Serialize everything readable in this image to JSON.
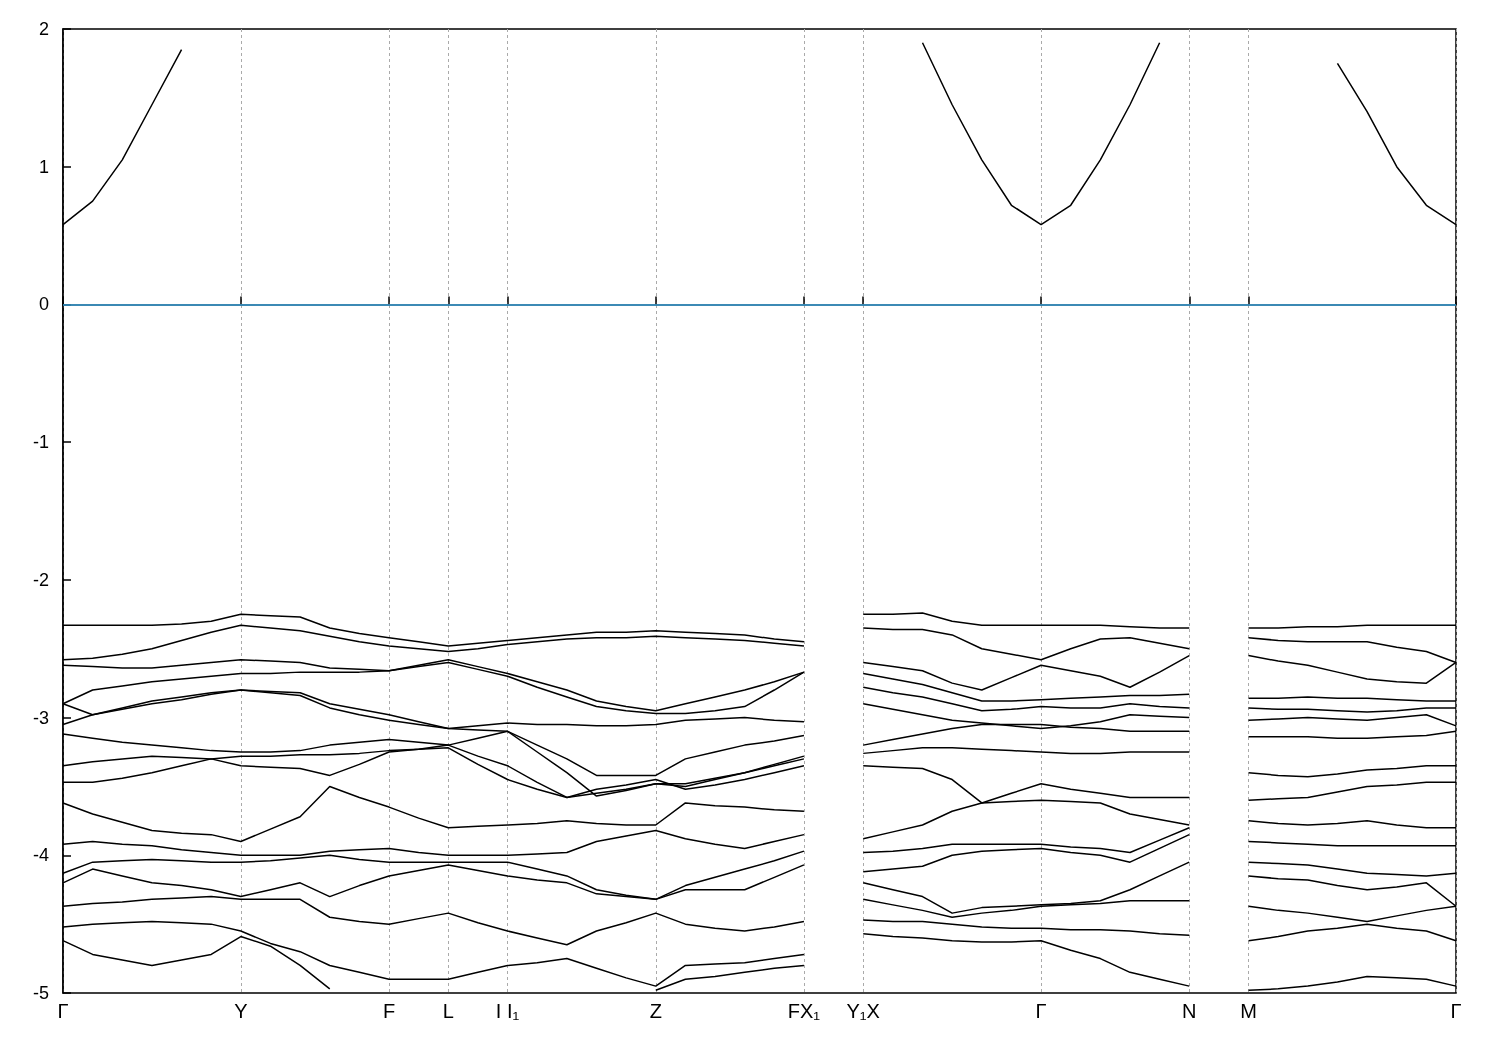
{
  "chart_data": {
    "type": "line",
    "ylim": [
      -5,
      2
    ],
    "yticks": [
      -5,
      -4,
      -3,
      -2,
      -1,
      0,
      1,
      2
    ],
    "categories": [
      "Γ",
      null,
      null,
      null,
      null,
      null,
      "Y",
      null,
      null,
      null,
      null,
      "F",
      null,
      "L",
      null,
      "I I₁",
      null,
      null,
      null,
      null,
      "Z",
      null,
      null,
      null,
      null,
      "FX₁",
      null,
      "Y₁X",
      null,
      null,
      null,
      null,
      null,
      "Γ",
      null,
      null,
      null,
      null,
      "N",
      null,
      "M",
      null,
      null,
      null,
      null,
      null,
      null,
      "Γ"
    ],
    "grid": "x",
    "marker": "none",
    "line_style": "solid",
    "ref_lines": [
      {
        "axis": "y",
        "value": 0,
        "color": "#3ba3dc"
      }
    ],
    "series": [
      {
        "color": "#000000",
        "values": [
          0.58,
          0.75,
          1.05,
          1.45,
          1.85,
          null,
          null,
          null,
          null,
          null,
          null,
          null,
          null,
          null,
          null,
          null,
          null,
          null,
          null,
          null,
          null,
          null,
          null,
          null,
          null,
          null,
          null,
          null,
          null,
          1.9,
          1.45,
          1.05,
          0.72,
          0.58,
          0.72,
          1.05,
          1.45,
          1.9,
          null,
          null,
          null,
          null,
          null,
          1.75,
          1.4,
          1.0,
          0.72,
          0.58
        ]
      },
      {
        "color": "#000000",
        "values": [
          -2.33,
          -2.33,
          -2.33,
          -2.33,
          -2.32,
          -2.3,
          -2.25,
          -2.26,
          -2.27,
          -2.35,
          -2.39,
          -2.42,
          -2.45,
          -2.48,
          -2.46,
          -2.44,
          -2.42,
          -2.4,
          -2.38,
          -2.38,
          -2.37,
          -2.38,
          -2.39,
          -2.4,
          -2.43,
          -2.45,
          null,
          -2.25,
          -2.25,
          -2.24,
          -2.3,
          -2.33,
          -2.33,
          -2.33,
          -2.33,
          -2.33,
          -2.34,
          -2.35,
          -2.35,
          null,
          -2.35,
          -2.35,
          -2.34,
          -2.34,
          -2.33,
          -2.33,
          -2.33,
          -2.33
        ]
      },
      {
        "color": "#000000",
        "values": [
          -2.58,
          -2.57,
          -2.54,
          -2.5,
          -2.44,
          -2.38,
          -2.33,
          -2.35,
          -2.37,
          -2.41,
          -2.45,
          -2.48,
          -2.5,
          -2.52,
          -2.5,
          -2.47,
          -2.45,
          -2.43,
          -2.42,
          -2.42,
          -2.41,
          -2.42,
          -2.43,
          -2.44,
          -2.46,
          -2.48,
          null,
          -2.35,
          -2.36,
          -2.36,
          -2.4,
          -2.5,
          -2.54,
          -2.58,
          -2.5,
          -2.43,
          -2.42,
          -2.46,
          -2.5,
          null,
          -2.42,
          -2.44,
          -2.45,
          -2.45,
          -2.45,
          -2.49,
          -2.52,
          -2.6
        ]
      },
      {
        "color": "#000000",
        "values": [
          -2.62,
          -2.63,
          -2.64,
          -2.64,
          -2.62,
          -2.6,
          -2.58,
          -2.59,
          -2.6,
          -2.64,
          -2.65,
          -2.66,
          -2.62,
          -2.58,
          -2.63,
          -2.68,
          -2.74,
          -2.8,
          -2.88,
          -2.92,
          -2.95,
          -2.9,
          -2.85,
          -2.8,
          -2.74,
          -2.67,
          null,
          -2.6,
          -2.63,
          -2.66,
          -2.75,
          -2.8,
          -2.71,
          -2.62,
          -2.66,
          -2.7,
          -2.78,
          -2.67,
          -2.55,
          null,
          -2.55,
          -2.59,
          -2.62,
          -2.67,
          -2.72,
          -2.74,
          -2.75,
          -2.6
        ]
      },
      {
        "color": "#000000",
        "values": [
          -2.9,
          -2.8,
          -2.77,
          -2.74,
          -2.72,
          -2.7,
          -2.68,
          -2.68,
          -2.67,
          -2.67,
          -2.67,
          -2.66,
          -2.63,
          -2.6,
          -2.65,
          -2.7,
          -2.78,
          -2.85,
          -2.92,
          -2.95,
          -2.97,
          -2.97,
          -2.95,
          -2.92,
          -2.8,
          -2.67,
          null,
          -2.68,
          -2.72,
          -2.76,
          -2.82,
          -2.88,
          -2.88,
          -2.87,
          -2.86,
          -2.85,
          -2.84,
          -2.84,
          -2.83,
          null,
          -2.86,
          -2.86,
          -2.85,
          -2.86,
          -2.86,
          -2.87,
          -2.88,
          -2.88
        ]
      },
      {
        "color": "#000000",
        "values": [
          -2.9,
          -2.98,
          -2.94,
          -2.9,
          -2.87,
          -2.83,
          -2.8,
          -2.81,
          -2.82,
          -2.9,
          -2.94,
          -2.98,
          -3.03,
          -3.08,
          -3.06,
          -3.04,
          -3.05,
          -3.05,
          -3.06,
          -3.06,
          -3.05,
          -3.02,
          -3.01,
          -3.0,
          -3.02,
          -3.03,
          null,
          -2.78,
          -2.82,
          -2.85,
          -2.9,
          -2.95,
          -2.94,
          -2.92,
          -2.93,
          -2.93,
          -2.9,
          -2.92,
          -2.93,
          null,
          -2.93,
          -2.94,
          -2.94,
          -2.95,
          -2.96,
          -2.95,
          -2.93,
          -2.93
        ]
      },
      {
        "color": "#000000",
        "values": [
          -3.05,
          -2.98,
          -2.93,
          -2.88,
          -2.85,
          -2.82,
          -2.8,
          -2.82,
          -2.84,
          -2.93,
          -2.98,
          -3.02,
          -3.05,
          -3.08,
          -3.09,
          -3.1,
          -3.2,
          -3.3,
          -3.42,
          -3.42,
          -3.42,
          -3.3,
          -3.25,
          -3.2,
          -3.17,
          -3.13,
          null,
          -2.9,
          -2.94,
          -2.98,
          -3.02,
          -3.04,
          -3.06,
          -3.08,
          -3.06,
          -3.03,
          -2.98,
          -2.99,
          -3.0,
          null,
          -3.02,
          -3.01,
          -3.0,
          -3.01,
          -3.02,
          -3.0,
          -2.98,
          -3.06
        ]
      },
      {
        "color": "#000000",
        "values": [
          -3.12,
          -3.15,
          -3.18,
          -3.2,
          -3.22,
          -3.24,
          -3.25,
          -3.25,
          -3.24,
          -3.2,
          -3.18,
          -3.16,
          -3.18,
          -3.2,
          -3.15,
          -3.1,
          -3.25,
          -3.4,
          -3.57,
          -3.53,
          -3.48,
          -3.5,
          -3.45,
          -3.4,
          -3.34,
          -3.28,
          null,
          -3.2,
          -3.16,
          -3.12,
          -3.08,
          -3.05,
          -3.05,
          -3.05,
          -3.07,
          -3.08,
          -3.1,
          -3.1,
          -3.1,
          null,
          -3.14,
          -3.14,
          -3.14,
          -3.15,
          -3.15,
          -3.14,
          -3.13,
          -3.1
        ]
      },
      {
        "color": "#000000",
        "values": [
          -3.35,
          -3.32,
          -3.3,
          -3.28,
          -3.29,
          -3.3,
          -3.35,
          -3.36,
          -3.37,
          -3.42,
          -3.34,
          -3.25,
          -3.23,
          -3.2,
          -3.28,
          -3.35,
          -3.47,
          -3.58,
          -3.52,
          -3.49,
          -3.45,
          -3.52,
          -3.49,
          -3.45,
          -3.4,
          -3.35,
          null,
          -3.26,
          -3.24,
          -3.22,
          -3.22,
          -3.23,
          -3.24,
          -3.25,
          -3.26,
          -3.26,
          -3.25,
          -3.25,
          -3.25,
          null,
          -3.4,
          -3.42,
          -3.43,
          -3.41,
          -3.38,
          -3.37,
          -3.35,
          -3.35
        ]
      },
      {
        "color": "#000000",
        "values": [
          -3.47,
          -3.47,
          -3.44,
          -3.4,
          -3.35,
          -3.3,
          -3.28,
          -3.28,
          -3.27,
          -3.27,
          -3.26,
          -3.24,
          -3.23,
          -3.22,
          -3.34,
          -3.45,
          -3.52,
          -3.58,
          -3.55,
          -3.52,
          -3.48,
          -3.48,
          -3.44,
          -3.4,
          -3.35,
          -3.3,
          null,
          -3.35,
          -3.36,
          -3.37,
          -3.45,
          -3.62,
          -3.55,
          -3.48,
          -3.52,
          -3.55,
          -3.58,
          -3.58,
          -3.58,
          null,
          -3.6,
          -3.59,
          -3.58,
          -3.54,
          -3.5,
          -3.49,
          -3.47,
          -3.47
        ]
      },
      {
        "color": "#000000",
        "values": [
          -3.62,
          -3.7,
          -3.76,
          -3.82,
          -3.84,
          -3.85,
          -3.9,
          -3.81,
          -3.72,
          -3.5,
          -3.58,
          -3.65,
          -3.73,
          -3.8,
          -3.79,
          -3.78,
          -3.77,
          -3.75,
          -3.77,
          -3.78,
          -3.78,
          -3.62,
          -3.64,
          -3.65,
          -3.67,
          -3.68,
          null,
          -3.88,
          -3.83,
          -3.78,
          -3.68,
          -3.62,
          -3.61,
          -3.6,
          -3.61,
          -3.62,
          -3.7,
          -3.74,
          -3.78,
          null,
          -3.75,
          -3.77,
          -3.78,
          -3.77,
          -3.75,
          -3.78,
          -3.8,
          -3.8
        ]
      },
      {
        "color": "#000000",
        "values": [
          -3.92,
          -3.9,
          -3.92,
          -3.93,
          -3.96,
          -3.98,
          -4.0,
          -4.0,
          -4.0,
          -3.97,
          -3.96,
          -3.95,
          -3.98,
          -4.0,
          -4.0,
          -4.0,
          -3.99,
          -3.98,
          -3.9,
          -3.86,
          -3.82,
          -3.88,
          -3.92,
          -3.95,
          -3.9,
          -3.85,
          null,
          -3.98,
          -3.97,
          -3.95,
          -3.92,
          -3.92,
          -3.92,
          -3.92,
          -3.94,
          -3.95,
          -3.98,
          -3.89,
          -3.8,
          null,
          -3.9,
          -3.91,
          -3.92,
          -3.93,
          -3.93,
          -3.93,
          -3.93,
          -3.93
        ]
      },
      {
        "color": "#000000",
        "values": [
          -4.13,
          -4.05,
          -4.04,
          -4.03,
          -4.04,
          -4.05,
          -4.05,
          -4.04,
          -4.02,
          -4.0,
          -4.03,
          -4.05,
          -4.05,
          -4.05,
          -4.05,
          -4.05,
          -4.1,
          -4.15,
          -4.25,
          -4.29,
          -4.32,
          -4.22,
          -4.16,
          -4.1,
          -4.04,
          -3.97,
          null,
          -4.12,
          -4.1,
          -4.08,
          -4.0,
          -3.97,
          -3.96,
          -3.95,
          -3.98,
          -4.0,
          -4.05,
          -3.95,
          -3.85,
          null,
          -4.05,
          -4.06,
          -4.07,
          -4.1,
          -4.13,
          -4.14,
          -4.15,
          -4.13
        ]
      },
      {
        "color": "#000000",
        "values": [
          -4.2,
          -4.1,
          -4.15,
          -4.2,
          -4.22,
          -4.25,
          -4.3,
          -4.25,
          -4.2,
          -4.3,
          -4.22,
          -4.15,
          -4.11,
          -4.07,
          -4.11,
          -4.15,
          -4.18,
          -4.2,
          -4.28,
          -4.3,
          -4.32,
          -4.25,
          -4.25,
          -4.25,
          -4.16,
          -4.07,
          null,
          -4.2,
          -4.25,
          -4.3,
          -4.42,
          -4.38,
          -4.37,
          -4.36,
          -4.35,
          -4.33,
          -4.25,
          -4.15,
          -4.05,
          null,
          -4.15,
          -4.17,
          -4.18,
          -4.22,
          -4.25,
          -4.23,
          -4.2,
          -4.37
        ]
      },
      {
        "color": "#000000",
        "values": [
          -4.37,
          -4.35,
          -4.34,
          -4.32,
          -4.31,
          -4.3,
          -4.32,
          -4.32,
          -4.32,
          -4.45,
          -4.48,
          -4.5,
          -4.46,
          -4.42,
          -4.49,
          -4.55,
          -4.6,
          -4.65,
          -4.55,
          -4.49,
          -4.42,
          -4.5,
          -4.53,
          -4.55,
          -4.52,
          -4.48,
          null,
          -4.32,
          -4.36,
          -4.4,
          -4.45,
          -4.42,
          -4.4,
          -4.37,
          -4.36,
          -4.35,
          -4.33,
          -4.33,
          -4.33,
          null,
          -4.37,
          -4.4,
          -4.42,
          -4.45,
          -4.48,
          -4.44,
          -4.4,
          -4.37
        ]
      },
      {
        "color": "#000000",
        "values": [
          -4.52,
          -4.5,
          -4.49,
          -4.48,
          -4.49,
          -4.5,
          -4.55,
          -4.64,
          -4.7,
          -4.8,
          -4.85,
          -4.9,
          -4.9,
          -4.9,
          -4.85,
          -4.8,
          -4.78,
          -4.75,
          -4.82,
          -4.89,
          -4.95,
          -4.8,
          -4.79,
          -4.78,
          -4.75,
          -4.72,
          null,
          -4.47,
          -4.48,
          -4.48,
          -4.5,
          -4.52,
          -4.53,
          -4.53,
          -4.54,
          -4.54,
          -4.55,
          -4.57,
          -4.58,
          null,
          -4.62,
          -4.59,
          -4.55,
          -4.53,
          -4.5,
          -4.53,
          -4.55,
          -4.62
        ]
      },
      {
        "color": "#000000",
        "values": [
          -4.62,
          -4.72,
          -4.76,
          -4.8,
          -4.76,
          -4.72,
          -4.59,
          -4.66,
          -4.8,
          -4.97,
          null,
          null,
          null,
          null,
          null,
          null,
          null,
          null,
          null,
          null,
          -4.98,
          -4.9,
          -4.88,
          -4.85,
          -4.82,
          -4.8,
          null,
          -4.57,
          -4.59,
          -4.6,
          -4.62,
          -4.63,
          -4.63,
          -4.62,
          -4.69,
          -4.75,
          -4.85,
          -4.9,
          -4.95,
          null,
          -4.98,
          -4.97,
          -4.95,
          -4.92,
          -4.88,
          -4.89,
          -4.9,
          -4.95
        ]
      }
    ]
  }
}
